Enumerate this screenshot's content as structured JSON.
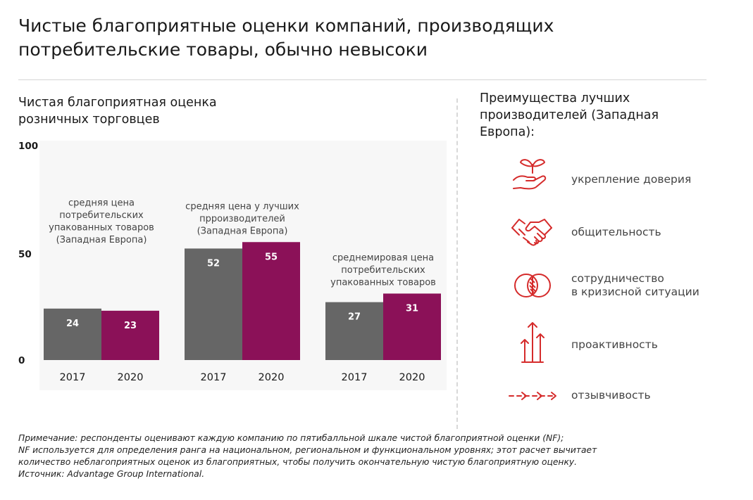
{
  "title_line1": "Чистые благоприятные оценки компаний, производящих",
  "title_line2": "потребительские товары, обычно невысоки",
  "chart_data": {
    "type": "bar",
    "title_line1": "Чистая благоприятная оценка",
    "title_line2": "розничных торговцев",
    "y_ticks": [
      "100",
      "50",
      "0"
    ],
    "ylim": [
      0,
      100
    ],
    "series_colors": {
      "2017": "#666666",
      "2020": "#8b1158"
    },
    "groups": [
      {
        "label_lines": [
          "средняя цена",
          "потребительских",
          "упакованных товаров",
          "(Западная Европа)"
        ],
        "bars": [
          {
            "year": "2017",
            "value": 24
          },
          {
            "year": "2020",
            "value": 23
          }
        ]
      },
      {
        "label_lines": [
          "средняя цена у лучших",
          "прроизводителей",
          "(Западная Европа)"
        ],
        "bars": [
          {
            "year": "2017",
            "value": 52
          },
          {
            "year": "2020",
            "value": 55
          }
        ]
      },
      {
        "label_lines": [
          "среднемировая цена",
          "потребительских",
          "упакованных товаров"
        ],
        "bars": [
          {
            "year": "2017",
            "value": 27
          },
          {
            "year": "2020",
            "value": 31
          }
        ]
      }
    ]
  },
  "right_panel": {
    "title_lines": [
      "Преимущества лучших",
      "производителей (Западная",
      "Европа):"
    ],
    "accent_color": "#d52b2b",
    "items": [
      {
        "icon": "hand-sprout-icon",
        "label_lines": [
          "укрепление доверия"
        ]
      },
      {
        "icon": "handshake-icon",
        "label_lines": [
          "общительность"
        ]
      },
      {
        "icon": "overlapping-circles-icon",
        "label_lines": [
          "сотрудничество",
          "в кризисной ситуации"
        ]
      },
      {
        "icon": "upward-arrows-icon",
        "label_lines": [
          "проактивность"
        ]
      },
      {
        "icon": "dashed-arrow-icon",
        "label_lines": [
          "отзывчивость"
        ]
      }
    ]
  },
  "note_lines": [
    "Примечание: респонденты оценивают каждую компанию по пятибалльной шкале чистой благоприятной оценки (NF);",
    "NF используется для определения ранга на национальном, региональном и функциональном уровнях; этот расчет вычитает",
    "количество неблагоприятных оценок из благоприятных, чтобы получить окончательную чистую благоприятную оценку.",
    "Источник: Advantage Group International."
  ]
}
